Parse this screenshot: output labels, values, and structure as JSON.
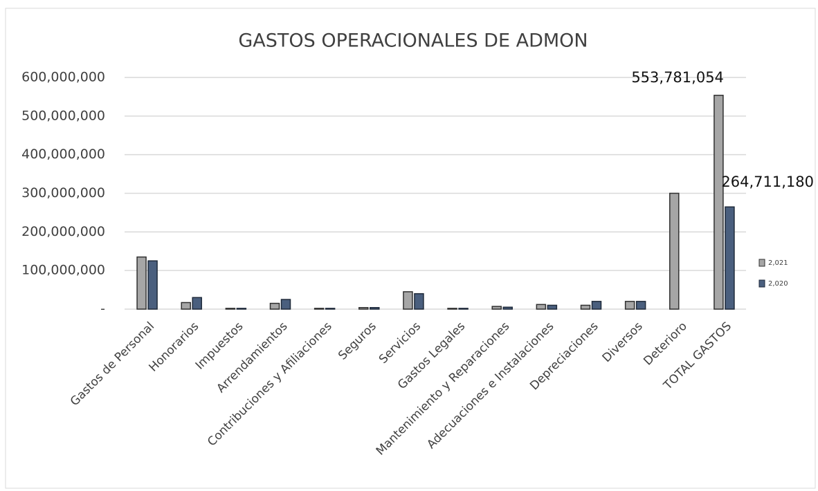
{
  "chart_data": {
    "type": "bar",
    "title": "GASTOS OPERACIONALES DE ADMON",
    "categories": [
      "Gastos de Personal",
      "Honorarios",
      "Impuestos",
      "Arrendamientos",
      "Contribuciones y Afiliaciones",
      "Seguros",
      "Servicios",
      "Gastos Legales",
      "Mantenimiento y Reparaciones",
      "Adecuaciones e Instalaciones",
      "Depreciaciones",
      "Diversos",
      "Deterioro",
      "TOTAL GASTOS"
    ],
    "series": [
      {
        "name": "2,021",
        "color": "#a6a6a6",
        "values": [
          135000000,
          17000000,
          2000000,
          15000000,
          2000000,
          4000000,
          45000000,
          2000000,
          7000000,
          12000000,
          10000000,
          20000000,
          300000000,
          553781054
        ],
        "value_labels": [
          null,
          null,
          null,
          null,
          null,
          null,
          null,
          null,
          null,
          null,
          null,
          null,
          null,
          "553,781,054"
        ]
      },
      {
        "name": "2,020",
        "color": "#4a5f7e",
        "values": [
          125000000,
          30000000,
          2000000,
          25000000,
          2000000,
          4000000,
          40000000,
          2000000,
          5000000,
          10000000,
          20000000,
          20000000,
          null,
          264711180
        ],
        "value_labels": [
          null,
          null,
          null,
          null,
          null,
          null,
          null,
          null,
          null,
          null,
          null,
          null,
          null,
          "264,711,180"
        ]
      }
    ],
    "ylim": [
      0,
      600000000
    ],
    "yticks": [
      {
        "value": 0,
        "label": "-"
      },
      {
        "value": 100000000,
        "label": "100,000,000"
      },
      {
        "value": 200000000,
        "label": "200,000,000"
      },
      {
        "value": 300000000,
        "label": "300,000,000"
      },
      {
        "value": 400000000,
        "label": "400,000,000"
      },
      {
        "value": 500000000,
        "label": "500,000,000"
      },
      {
        "value": 600000000,
        "label": "600,000,000"
      }
    ],
    "grid": true,
    "legend": "right"
  }
}
